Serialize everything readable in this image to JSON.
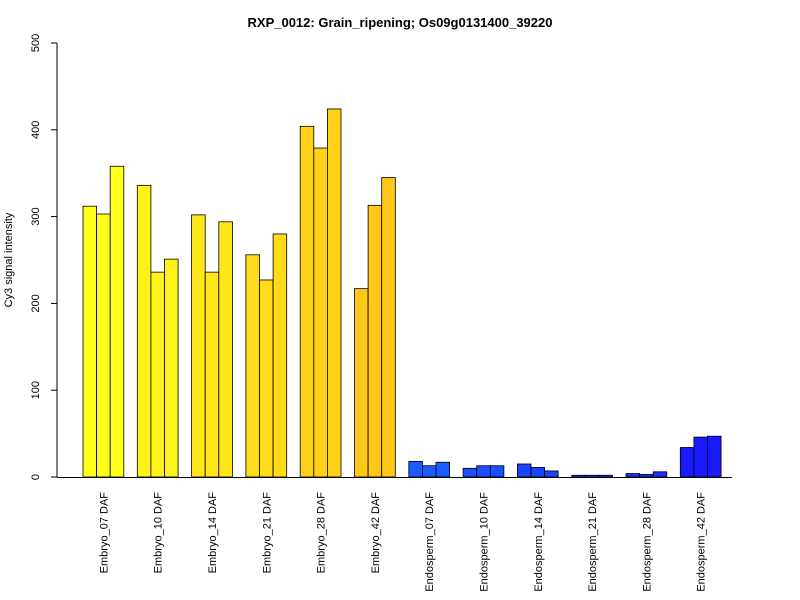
{
  "chart_data": {
    "type": "bar",
    "title": "RXP_0012: Grain_ripening; Os09g0131400_39220",
    "ylabel": "Cy3 signal intensity",
    "xlabel": "",
    "ylim": [
      0,
      500
    ],
    "yticks": [
      "0",
      "100",
      "200",
      "300",
      "400",
      "500"
    ],
    "categories": [
      "Embryo_07 DAF",
      "Embryo_10 DAF",
      "Embryo_14 DAF",
      "Embryo_21 DAF",
      "Embryo_28 DAF",
      "Embryo_42 DAF",
      "Endosperm_07 DAF",
      "Endosperm_10 DAF",
      "Endosperm_14 DAF",
      "Endosperm_21 DAF",
      "Endosperm_28 DAF",
      "Endosperm_42 DAF"
    ],
    "replicates_per_category": 3,
    "values": [
      [
        312,
        303,
        358
      ],
      [
        336,
        236,
        251
      ],
      [
        302,
        236,
        294
      ],
      [
        256,
        227,
        280
      ],
      [
        404,
        379,
        424
      ],
      [
        217,
        313,
        345
      ],
      [
        18,
        13,
        17
      ],
      [
        10,
        13,
        13
      ],
      [
        15,
        11,
        7
      ],
      [
        2,
        2,
        2
      ],
      [
        4,
        3,
        6
      ],
      [
        34,
        46,
        47
      ]
    ],
    "colors": [
      "#ffff1a",
      "#fff21a",
      "#ffe61a",
      "#ffdb1a",
      "#ffd11a",
      "#ffc61a",
      "#1a5cff",
      "#1a50ff",
      "#1a45ff",
      "#1a3aff",
      "#1a2eff",
      "#1a1aff"
    ],
    "grid": false,
    "legend": "none"
  }
}
